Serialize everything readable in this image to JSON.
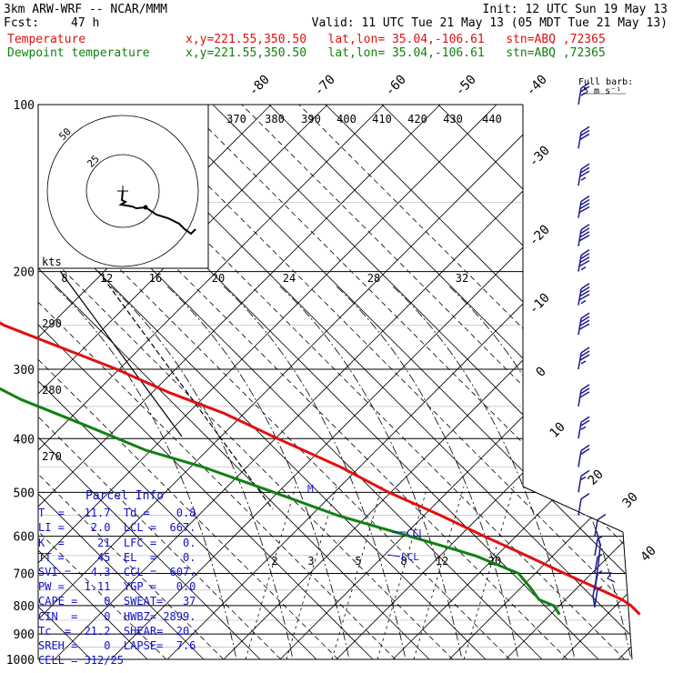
{
  "header": {
    "model": "3km ARW-WRF -- NCAR/MMM",
    "fcst_label": "Fcst:",
    "fcst_value": "47 h",
    "init": "Init: 12 UTC Sun 19 May 13",
    "valid": "Valid: 11 UTC Tue 21 May 13 (05 MDT Tue 21 May 13)",
    "temp_label": "Temperature",
    "temp_info": "x,y=221.55,350.50   lat,lon= 35.04,-106.61   stn=ABQ ,72365",
    "dew_label": "Dewpoint temperature",
    "dew_info": "x,y=221.55,350.50   lat,lon= 35.04,-106.61   stn=ABQ ,72365"
  },
  "barb_legend": {
    "line1": "Full barb:",
    "line2": "5 m s⁻¹"
  },
  "colors": {
    "temperature": "#e01010",
    "dewpoint": "#108010",
    "info": "#1010d0",
    "grid": "#000000"
  },
  "chart_data": {
    "type": "line",
    "title": "3km ARW-WRF -- NCAR/MMM",
    "ylabel": "",
    "pressure_levels": [
      100,
      200,
      300,
      400,
      500,
      600,
      700,
      800,
      900,
      1000
    ],
    "pressure_labels": [
      "100",
      "200",
      "300",
      "400",
      "500",
      "600",
      "700",
      "800",
      "900",
      "1000"
    ],
    "isotherms": [
      -80,
      -70,
      -60,
      -50,
      -40,
      -30,
      -20,
      -10,
      0,
      10,
      20,
      30,
      40
    ],
    "isotherm_labels": [
      "-80",
      "-70",
      "-60",
      "-50",
      "-40",
      "-30",
      "-20",
      "-10",
      "0",
      "10",
      "20",
      "30",
      "40"
    ],
    "mixing_ratio_labels": [
      "2",
      "3",
      "5",
      "8",
      "12",
      "20"
    ],
    "dry_adiabat_labels": [
      "370",
      "380",
      "390",
      "400",
      "410",
      "420",
      "430",
      "440"
    ],
    "moist_adiabat_labels": [
      "290",
      "280",
      "270"
    ],
    "hodograph": {
      "ring_labels": [
        "25",
        "50"
      ],
      "units": "kts",
      "speed_labels": [
        "8",
        "12",
        "16",
        "20",
        "24",
        "28",
        "32"
      ]
    },
    "annotations": {
      "lfc": "M",
      "ccl": "CCL",
      "lcl": "LCL"
    },
    "series": [
      {
        "name": "Temperature",
        "points": [
          [
            100,
            -60.5
          ],
          [
            150,
            -58
          ],
          [
            200,
            -57
          ],
          [
            250,
            -50
          ],
          [
            300,
            -38
          ],
          [
            330,
            -33
          ],
          [
            360,
            -27
          ],
          [
            400,
            -22
          ],
          [
            450,
            -16
          ],
          [
            500,
            -12
          ],
          [
            550,
            -7
          ],
          [
            600,
            -3
          ],
          [
            650,
            1
          ],
          [
            700,
            4.5
          ],
          [
            750,
            8
          ],
          [
            780,
            10
          ],
          [
            800,
            10.5
          ],
          [
            830,
            10.5
          ]
        ]
      },
      {
        "name": "Dewpoint temperature",
        "points": [
          [
            100,
            -87
          ],
          [
            150,
            -83
          ],
          [
            200,
            -80
          ],
          [
            250,
            -72
          ],
          [
            300,
            -65
          ],
          [
            340,
            -60
          ],
          [
            380,
            -53
          ],
          [
            420,
            -47
          ],
          [
            450,
            -40
          ],
          [
            500,
            -32
          ],
          [
            550,
            -25
          ],
          [
            600,
            -16
          ],
          [
            650,
            -8
          ],
          [
            700,
            -3.5
          ],
          [
            750,
            -4
          ],
          [
            780,
            -4.5
          ],
          [
            800,
            -3
          ],
          [
            830,
            -3.5
          ]
        ]
      }
    ],
    "wind_barbs_m_s": [
      {
        "p": 100,
        "speed": 25
      },
      {
        "p": 120,
        "speed": 30
      },
      {
        "p": 140,
        "speed": 35
      },
      {
        "p": 160,
        "speed": 40
      },
      {
        "p": 180,
        "speed": 40
      },
      {
        "p": 200,
        "speed": 45
      },
      {
        "p": 230,
        "speed": 45
      },
      {
        "p": 260,
        "speed": 40
      },
      {
        "p": 300,
        "speed": 35
      },
      {
        "p": 350,
        "speed": 30
      },
      {
        "p": 400,
        "speed": 25
      },
      {
        "p": 450,
        "speed": 20
      },
      {
        "p": 500,
        "speed": 15
      },
      {
        "p": 550,
        "speed": 10
      },
      {
        "p": 600,
        "speed": 10
      },
      {
        "p": 650,
        "speed": 5
      },
      {
        "p": 700,
        "speed": 5
      },
      {
        "p": 750,
        "speed": 5
      },
      {
        "p": 800,
        "speed": 5
      }
    ]
  },
  "parcel_info": {
    "title": "Parcel Info",
    "rows": [
      "T  =   11.7  Td =    0.8",
      "LI =    2.0  LCL =  667.",
      "K  =     21  LFC =    0.",
      "TT =     45  EL  =    0.",
      "SVI =   4.3  CCL =  607.",
      "PW =   1.11  YGP =   0.0",
      "CAPE =    0  SWEAT=   37",
      "CIN  =    0  HWBZ= 2899.",
      "Tc  =  21.2  SHEAR=  20.",
      "SREH =    0  LAPSE=  7.6",
      "CELL = 312/25"
    ]
  }
}
